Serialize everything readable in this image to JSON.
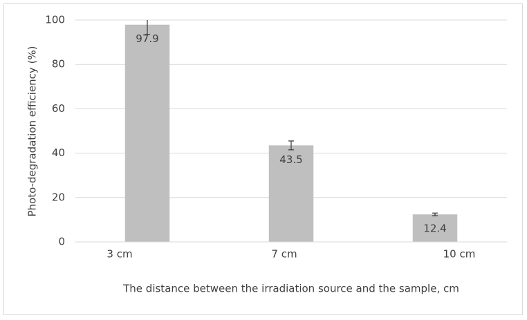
{
  "chart_data": {
    "type": "bar",
    "x_label": "The distance between the irradiation source and the sample, cm",
    "y_label": "Photo-degradation efficiency (%)",
    "categories": [
      "3 cm",
      "7 cm",
      "10 cm"
    ],
    "series": [
      {
        "color": "#bfbfbf",
        "values": [
          97.9,
          43.5,
          12.4
        ],
        "errors": [
          4.4,
          2.0,
          0.6
        ]
      }
    ],
    "ylim": [
      0,
      100
    ],
    "yticks": [
      0,
      20,
      40,
      60,
      80,
      100
    ],
    "grid": true
  }
}
